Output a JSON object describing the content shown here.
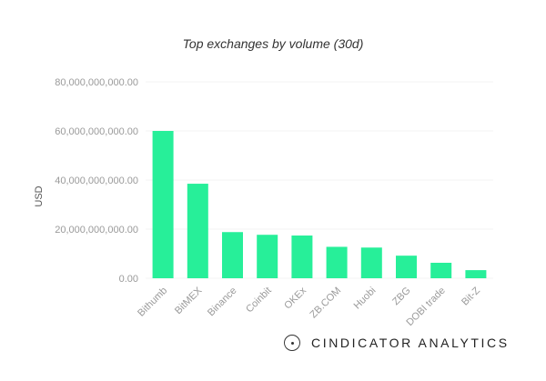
{
  "chart_data": {
    "type": "bar",
    "title": "Top exchanges by volume (30d)",
    "ylabel": "USD",
    "xlabel": "",
    "categories": [
      "Bithumb",
      "BitMEX",
      "Binance",
      "Coinbit",
      "OKEx",
      "ZB.COM",
      "Huobi",
      "ZBG",
      "DOBI trade",
      "Bit-Z"
    ],
    "values": [
      60000000000,
      38500000000,
      18800000000,
      17700000000,
      17400000000,
      12800000000,
      12500000000,
      9200000000,
      6300000000,
      3300000000
    ],
    "ylim": [
      0,
      80000000000
    ],
    "yticks": [
      "0.00",
      "20,000,000,000.00",
      "40,000,000,000.00",
      "60,000,000,000.00",
      "80,000,000,000.00"
    ],
    "grid": true,
    "legend": "none",
    "bar_color": "#27ef99"
  },
  "brand": {
    "name": "CINDICATOR ANALYTICS",
    "logo_icon": "circle-dot-icon"
  }
}
